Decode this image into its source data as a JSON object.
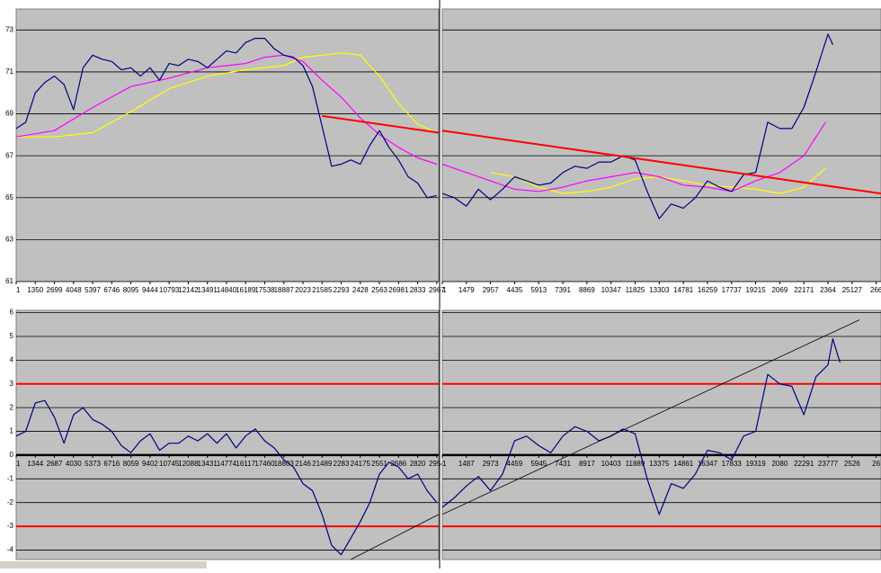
{
  "chart_data": [
    {
      "type": "line",
      "ylim": [
        61,
        74
      ],
      "yticks": [
        61,
        63,
        65,
        67,
        69,
        71,
        73
      ],
      "ytick_labels": true,
      "zero_line": false,
      "xlim": [
        0,
        22.1
      ],
      "xticks": [
        {
          "value": 0,
          "label": "1"
        },
        {
          "value": 1,
          "label": "1350"
        },
        {
          "value": 2,
          "label": "2699"
        },
        {
          "value": 3,
          "label": "4048"
        },
        {
          "value": 4,
          "label": "5397"
        },
        {
          "value": 5,
          "label": "6746"
        },
        {
          "value": 6,
          "label": "8095"
        },
        {
          "value": 7,
          "label": "9444"
        },
        {
          "value": 8,
          "label": "10793"
        },
        {
          "value": 9,
          "label": "12142"
        },
        {
          "value": 10,
          "label": "13491"
        },
        {
          "value": 11,
          "label": "14840"
        },
        {
          "value": 12,
          "label": "16189"
        },
        {
          "value": 13,
          "label": "17538"
        },
        {
          "value": 14,
          "label": "18887"
        },
        {
          "value": 15,
          "label": "2023"
        },
        {
          "value": 16,
          "label": "21585"
        },
        {
          "value": 17,
          "label": "2293"
        },
        {
          "value": 18,
          "label": "2428"
        },
        {
          "value": 19,
          "label": "2563"
        },
        {
          "value": 20,
          "label": "26981"
        },
        {
          "value": 21,
          "label": "2833"
        },
        {
          "value": 22,
          "label": "2967"
        }
      ],
      "series": [
        {
          "color": "#ffff00",
          "width": 1.2,
          "x": [
            0,
            2,
            4,
            6,
            8,
            10,
            12,
            14,
            15,
            16,
            17,
            18,
            19,
            20,
            21,
            22
          ],
          "values": [
            67.9,
            67.9,
            68.1,
            69.1,
            70.2,
            70.8,
            71.1,
            71.3,
            71.7,
            71.8,
            71.9,
            71.8,
            70.8,
            69.5,
            68.5,
            68.1
          ]
        },
        {
          "color": "#ff00ff",
          "width": 1.2,
          "x": [
            0,
            2,
            4,
            6,
            8,
            10,
            12,
            13,
            14,
            15,
            16,
            17,
            18,
            19,
            20,
            21,
            22
          ],
          "values": [
            67.9,
            68.2,
            69.3,
            70.3,
            70.7,
            71.2,
            71.4,
            71.7,
            71.8,
            71.5,
            70.6,
            69.8,
            68.8,
            68.0,
            67.4,
            66.9,
            66.6
          ]
        },
        {
          "color": "#000080",
          "width": 1.2,
          "x": [
            0,
            0.5,
            1,
            1.5,
            2,
            2.5,
            3,
            3.5,
            4,
            4.5,
            5,
            5.5,
            6,
            6.5,
            7,
            7.5,
            8,
            8.5,
            9,
            9.5,
            10,
            10.5,
            11,
            11.5,
            12,
            12.5,
            13,
            13.5,
            14,
            14.5,
            15,
            15.5,
            16,
            16.5,
            17,
            17.5,
            18,
            18.5,
            19,
            19.5,
            20,
            20.5,
            21,
            21.5,
            22
          ],
          "values": [
            68.3,
            68.6,
            70,
            70.5,
            70.8,
            70.4,
            69.2,
            71.2,
            71.8,
            71.6,
            71.5,
            71.1,
            71.2,
            70.8,
            71.2,
            70.6,
            71.4,
            71.3,
            71.6,
            71.5,
            71.2,
            71.6,
            72.0,
            71.9,
            72.4,
            72.6,
            72.6,
            72.1,
            71.8,
            71.7,
            71.3,
            70.3,
            68.4,
            66.5,
            66.6,
            66.8,
            66.6,
            67.5,
            68.2,
            67.4,
            66.8,
            66.0,
            65.7,
            65.0,
            65.1
          ]
        },
        {
          "color": "#ff0000",
          "width": 2,
          "x": [
            16,
            22.1
          ],
          "values": [
            68.9,
            68.1
          ]
        }
      ]
    },
    {
      "type": "line",
      "ylim": [
        61,
        74
      ],
      "yticks": [
        61,
        63,
        65,
        67,
        69,
        71,
        73
      ],
      "ytick_labels": false,
      "zero_line": false,
      "xlim": [
        0,
        18.2
      ],
      "xticks": [
        {
          "value": 0,
          "label": "1"
        },
        {
          "value": 1,
          "label": "1479"
        },
        {
          "value": 2,
          "label": "2957"
        },
        {
          "value": 3,
          "label": "4435"
        },
        {
          "value": 4,
          "label": "5913"
        },
        {
          "value": 5,
          "label": "7391"
        },
        {
          "value": 6,
          "label": "8869"
        },
        {
          "value": 7,
          "label": "10347"
        },
        {
          "value": 8,
          "label": "11825"
        },
        {
          "value": 9,
          "label": "13303"
        },
        {
          "value": 10,
          "label": "14781"
        },
        {
          "value": 11,
          "label": "16259"
        },
        {
          "value": 12,
          "label": "17737"
        },
        {
          "value": 13,
          "label": "19215"
        },
        {
          "value": 14,
          "label": "2069"
        },
        {
          "value": 15,
          "label": "22171"
        },
        {
          "value": 16,
          "label": "2364"
        },
        {
          "value": 17,
          "label": "25127"
        },
        {
          "value": 18,
          "label": "266"
        }
      ],
      "series": [
        {
          "color": "#ffff00",
          "width": 1.2,
          "x": [
            2,
            3,
            4,
            5,
            6,
            7,
            8,
            9,
            10,
            11,
            12,
            13,
            14,
            15,
            15.9
          ],
          "values": [
            66.2,
            66.0,
            65.5,
            65.2,
            65.3,
            65.5,
            65.9,
            66.0,
            65.8,
            65.6,
            65.5,
            65.4,
            65.2,
            65.5,
            66.4
          ]
        },
        {
          "color": "#ff00ff",
          "width": 1.2,
          "x": [
            0,
            1,
            2,
            3,
            4,
            5,
            6,
            7,
            8,
            9,
            10,
            11,
            12,
            13,
            14,
            15,
            15.9
          ],
          "values": [
            66.6,
            66.2,
            65.8,
            65.4,
            65.3,
            65.5,
            65.8,
            66.0,
            66.2,
            66.0,
            65.6,
            65.5,
            65.3,
            65.8,
            66.2,
            67.0,
            68.6
          ]
        },
        {
          "color": "#000080",
          "width": 1.2,
          "x": [
            0,
            0.5,
            1,
            1.5,
            2,
            2.5,
            3,
            3.5,
            4,
            4.5,
            5,
            5.5,
            6,
            6.5,
            7,
            7.5,
            8,
            8.5,
            9,
            9.5,
            10,
            10.5,
            11,
            11.5,
            12,
            12.5,
            13,
            13.5,
            14,
            14.5,
            15,
            15.5,
            16,
            16.2
          ],
          "values": [
            65.2,
            65.0,
            64.6,
            65.4,
            64.9,
            65.4,
            66.0,
            65.8,
            65.6,
            65.7,
            66.2,
            66.5,
            66.4,
            66.7,
            66.7,
            67.0,
            66.8,
            65.3,
            64.0,
            64.7,
            64.5,
            65.0,
            65.8,
            65.5,
            65.3,
            66.1,
            66.2,
            68.6,
            68.3,
            68.3,
            69.3,
            71.0,
            72.8,
            72.3
          ]
        },
        {
          "color": "#ff0000",
          "width": 2,
          "x": [
            0,
            18.2
          ],
          "values": [
            68.2,
            65.2
          ]
        }
      ]
    },
    {
      "type": "line",
      "ylim": [
        -4.4,
        6.1
      ],
      "yticks": [
        -4,
        -3,
        -2,
        -1,
        0,
        1,
        2,
        3,
        4,
        5,
        6
      ],
      "ytick_labels": true,
      "zero_line": true,
      "xlim": [
        0,
        22.1
      ],
      "xticks": [
        {
          "value": 0,
          "label": "1"
        },
        {
          "value": 1,
          "label": "1344"
        },
        {
          "value": 2,
          "label": "2687"
        },
        {
          "value": 3,
          "label": "4030"
        },
        {
          "value": 4,
          "label": "5373"
        },
        {
          "value": 5,
          "label": "6716"
        },
        {
          "value": 6,
          "label": "8059"
        },
        {
          "value": 7,
          "label": "9402"
        },
        {
          "value": 8,
          "label": "10745"
        },
        {
          "value": 9,
          "label": "12088"
        },
        {
          "value": 10,
          "label": "13431"
        },
        {
          "value": 11,
          "label": "14774"
        },
        {
          "value": 12,
          "label": "16117"
        },
        {
          "value": 13,
          "label": "17460"
        },
        {
          "value": 14,
          "label": "18803"
        },
        {
          "value": 15,
          "label": "2146"
        },
        {
          "value": 16,
          "label": "21489"
        },
        {
          "value": 17,
          "label": "2283"
        },
        {
          "value": 18,
          "label": "24175"
        },
        {
          "value": 19,
          "label": "2551"
        },
        {
          "value": 20,
          "label": "2686"
        },
        {
          "value": 21,
          "label": "2820"
        },
        {
          "value": 22,
          "label": "2954"
        }
      ],
      "series": [
        {
          "color": "#ff0000",
          "width": 2,
          "x": [
            0,
            22.1
          ],
          "values": [
            3,
            3
          ]
        },
        {
          "color": "#ff0000",
          "width": 2,
          "x": [
            0,
            22.1
          ],
          "values": [
            -3,
            -3
          ]
        },
        {
          "color": "#000080",
          "width": 1.2,
          "x": [
            0,
            0.5,
            1,
            1.5,
            2,
            2.5,
            3,
            3.5,
            4,
            4.5,
            5,
            5.5,
            6,
            6.5,
            7,
            7.5,
            8,
            8.5,
            9,
            9.5,
            10,
            10.5,
            11,
            11.5,
            12,
            12.5,
            13,
            13.5,
            14,
            14.5,
            15,
            15.5,
            16,
            16.5,
            17,
            17.5,
            18,
            18.5,
            19,
            19.5,
            20,
            20.5,
            21,
            21.5,
            22
          ],
          "values": [
            0.8,
            1.0,
            2.2,
            2.3,
            1.6,
            0.5,
            1.7,
            2.0,
            1.5,
            1.3,
            1.0,
            0.4,
            0.1,
            0.6,
            0.9,
            0.2,
            0.5,
            0.5,
            0.8,
            0.6,
            0.9,
            0.5,
            0.9,
            0.3,
            0.8,
            1.1,
            0.6,
            0.3,
            -0.2,
            -0.5,
            -1.2,
            -1.5,
            -2.5,
            -3.8,
            -4.2,
            -3.5,
            -2.8,
            -2.0,
            -0.8,
            -0.3,
            -0.5,
            -1.0,
            -0.8,
            -1.5,
            -2.0
          ]
        },
        {
          "color": "#000000",
          "width": 0.8,
          "x": [
            17.5,
            22.1
          ],
          "values": [
            -4.4,
            -2.5
          ]
        }
      ]
    },
    {
      "type": "line",
      "ylim": [
        -4.4,
        6.1
      ],
      "yticks": [
        -4,
        -3,
        -2,
        -1,
        0,
        1,
        2,
        3,
        4,
        5,
        6
      ],
      "ytick_labels": false,
      "zero_line": true,
      "xlim": [
        0,
        18.2
      ],
      "xticks": [
        {
          "value": 0,
          "label": "1"
        },
        {
          "value": 1,
          "label": "1487"
        },
        {
          "value": 2,
          "label": "2973"
        },
        {
          "value": 3,
          "label": "4459"
        },
        {
          "value": 4,
          "label": "5945"
        },
        {
          "value": 5,
          "label": "7431"
        },
        {
          "value": 6,
          "label": "8917"
        },
        {
          "value": 7,
          "label": "10403"
        },
        {
          "value": 8,
          "label": "11889"
        },
        {
          "value": 9,
          "label": "13375"
        },
        {
          "value": 10,
          "label": "14861"
        },
        {
          "value": 11,
          "label": "16347"
        },
        {
          "value": 12,
          "label": "17833"
        },
        {
          "value": 13,
          "label": "19319"
        },
        {
          "value": 14,
          "label": "2080"
        },
        {
          "value": 15,
          "label": "22291"
        },
        {
          "value": 16,
          "label": "23777"
        },
        {
          "value": 17,
          "label": "2526"
        },
        {
          "value": 18,
          "label": "26"
        }
      ],
      "series": [
        {
          "color": "#ff0000",
          "width": 2,
          "x": [
            0,
            18.2
          ],
          "values": [
            3,
            3
          ]
        },
        {
          "color": "#ff0000",
          "width": 2,
          "x": [
            0,
            18.2
          ],
          "values": [
            -3,
            -3
          ]
        },
        {
          "color": "#000080",
          "width": 1.2,
          "x": [
            0,
            0.5,
            1,
            1.5,
            2,
            2.5,
            3,
            3.5,
            4,
            4.5,
            5,
            5.5,
            6,
            6.5,
            7,
            7.5,
            8,
            8.5,
            9,
            9.5,
            10,
            10.5,
            11,
            11.5,
            12,
            12.5,
            13,
            13.5,
            14,
            14.5,
            15,
            15.5,
            16,
            16.2,
            16.5
          ],
          "values": [
            -2.2,
            -1.8,
            -1.3,
            -0.9,
            -1.5,
            -0.8,
            0.6,
            0.8,
            0.4,
            0.1,
            0.8,
            1.2,
            1.0,
            0.6,
            0.8,
            1.1,
            0.9,
            -1.0,
            -2.5,
            -1.2,
            -1.4,
            -0.8,
            0.2,
            0.1,
            -0.2,
            0.8,
            1.0,
            3.4,
            3.0,
            2.9,
            1.7,
            3.3,
            3.8,
            4.9,
            3.9
          ]
        },
        {
          "color": "#000000",
          "width": 0.8,
          "x": [
            0,
            17.3
          ],
          "values": [
            -2.5,
            5.7
          ]
        }
      ]
    }
  ]
}
